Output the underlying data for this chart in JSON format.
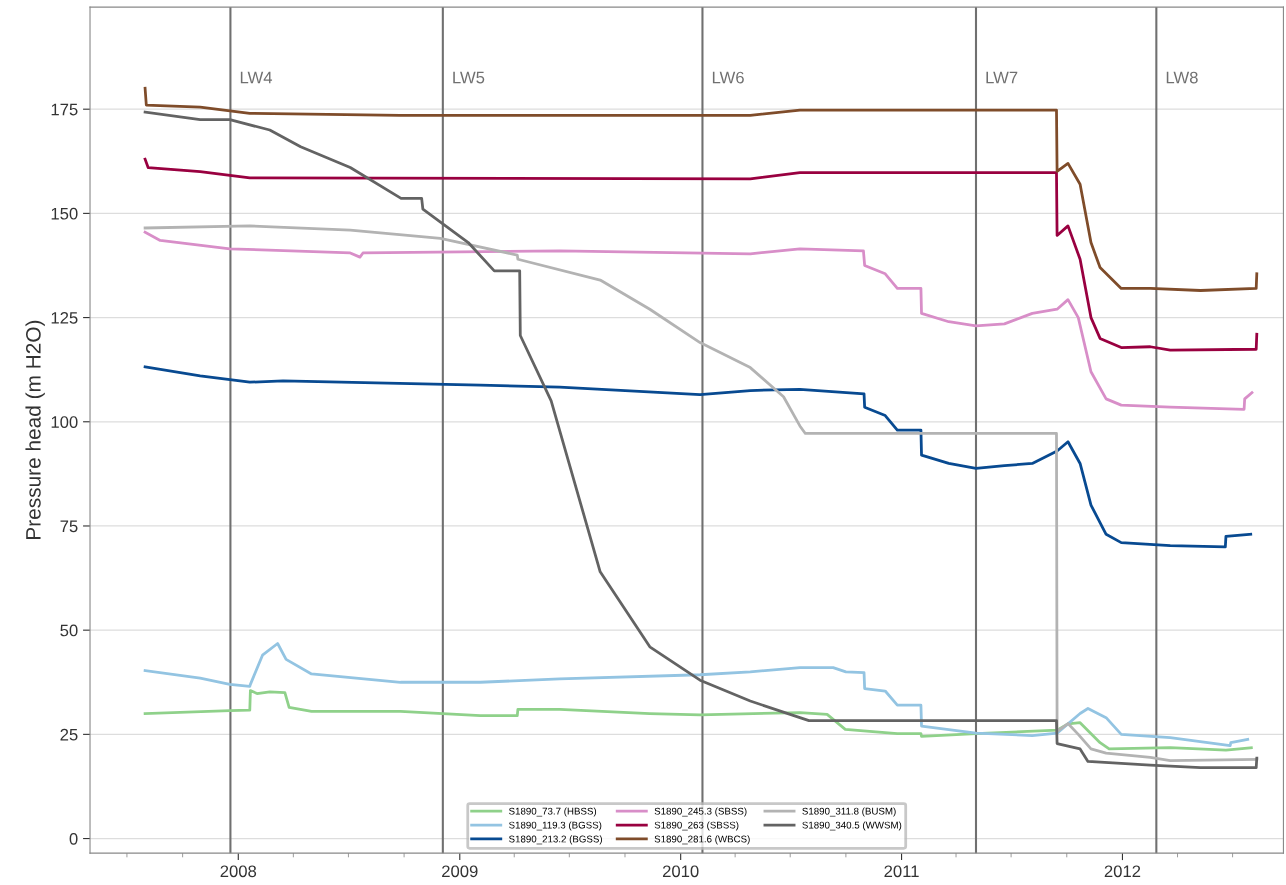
{
  "chart_data": {
    "type": "line",
    "ylabel": "Pressure head (m H2O)",
    "xlim": [
      "2007-05-01",
      "2012-09-23"
    ],
    "ylim": [
      -3.5,
      199.5
    ],
    "xticks": [
      {
        "value": "2008-01-01",
        "label": "2008"
      },
      {
        "value": "2009-01-01",
        "label": "2009"
      },
      {
        "value": "2010-01-01",
        "label": "2010"
      },
      {
        "value": "2011-01-01",
        "label": "2011"
      },
      {
        "value": "2012-01-01",
        "label": "2012"
      }
    ],
    "yticks": [
      0,
      25,
      50,
      75,
      100,
      125,
      150,
      175
    ],
    "grid": "y",
    "legend": "bottom",
    "marker": "none",
    "line_style": "solid",
    "ref_lines": [
      {
        "axis": "x",
        "value": "2007-12-19",
        "label": "LW4",
        "color": "#707070"
      },
      {
        "axis": "x",
        "value": "2008-12-04",
        "label": "LW5",
        "color": "#707070"
      },
      {
        "axis": "x",
        "value": "2010-02-06",
        "label": "LW6",
        "color": "#707070"
      },
      {
        "axis": "x",
        "value": "2011-05-04",
        "label": "LW7",
        "color": "#707070"
      },
      {
        "axis": "x",
        "value": "2012-02-26",
        "label": "LW8",
        "color": "#707070"
      }
    ],
    "series": [
      {
        "name": "S1890_73.7 (HBSS)",
        "color": "#8fd18a",
        "x": [
          "2007-07-31",
          "2007-12-18",
          "2008-01-20",
          "2008-01-21",
          "2008-02-01",
          "2008-02-22",
          "2008-03-18",
          "2008-03-25",
          "2008-05-01",
          "2008-09-25",
          "2009-02-04",
          "2009-04-06",
          "2009-04-07",
          "2009-06-15",
          "2009-11-11",
          "2010-02-02",
          "2010-07-17",
          "2010-08-31",
          "2010-09-30",
          "2010-12-25",
          "2011-02-02",
          "2011-02-03",
          "2011-05-04",
          "2011-09-15",
          "2011-10-03",
          "2011-10-23",
          "2011-11-25",
          "2011-12-10",
          "2012-03-20",
          "2012-06-20",
          "2012-08-01"
        ],
        "values": [
          30,
          30.7,
          30.8,
          35.5,
          34.8,
          35.2,
          35,
          31.5,
          30.5,
          30.5,
          29.5,
          29.5,
          31,
          31,
          30,
          29.7,
          30.2,
          29.8,
          26.2,
          25.2,
          25.2,
          24.5,
          25.2,
          26,
          27.5,
          27.8,
          23,
          21.5,
          21.8,
          21.2,
          21.8
        ]
      },
      {
        "name": "S1890_119.3 (BGSS)",
        "color": "#93c4e2",
        "x": [
          "2007-07-31",
          "2007-10-30",
          "2007-12-18",
          "2008-01-20",
          "2008-01-21",
          "2008-02-10",
          "2008-03-06",
          "2008-03-20",
          "2008-05-01",
          "2008-09-25",
          "2009-02-04",
          "2009-06-15",
          "2010-02-02",
          "2010-04-26",
          "2010-07-17",
          "2010-09-10",
          "2010-10-01",
          "2010-10-31",
          "2010-11-01",
          "2010-12-05",
          "2010-12-25",
          "2011-02-02",
          "2011-02-03",
          "2011-05-04",
          "2011-08-05",
          "2011-09-15",
          "2011-10-23",
          "2011-11-05",
          "2011-12-05",
          "2011-12-30",
          "2012-03-20",
          "2012-06-27",
          "2012-06-28",
          "2012-07-26"
        ],
        "values": [
          40.3,
          38.5,
          37,
          36.5,
          37,
          44,
          46.8,
          43,
          39.5,
          37.5,
          37.5,
          38.3,
          39.3,
          40,
          41,
          41,
          40,
          39.8,
          36,
          35.4,
          32,
          32,
          27,
          25.3,
          24.7,
          25.3,
          30,
          31.2,
          29,
          25,
          24.2,
          22.3,
          23,
          23.8
        ]
      },
      {
        "name": "S1890_213.2 (BGSS)",
        "color": "#084a91",
        "x": [
          "2007-07-31",
          "2007-10-30",
          "2008-01-20",
          "2008-03-15",
          "2009-02-04",
          "2009-06-15",
          "2010-02-02",
          "2010-04-26",
          "2010-07-17",
          "2010-10-31",
          "2010-11-01",
          "2010-12-05",
          "2010-12-25",
          "2011-02-02",
          "2011-02-03",
          "2011-03-20",
          "2011-05-04",
          "2011-06-20",
          "2011-08-05",
          "2011-09-15",
          "2011-10-03",
          "2011-10-23",
          "2011-11-10",
          "2011-12-05",
          "2011-12-30",
          "2012-03-20",
          "2012-06-19",
          "2012-06-20",
          "2012-07-31"
        ],
        "values": [
          113.2,
          111,
          109.5,
          109.8,
          108.8,
          108.3,
          106.5,
          107.5,
          107.8,
          106.7,
          103.5,
          101.5,
          98,
          98,
          92,
          90,
          88.8,
          89.5,
          90,
          93,
          95.2,
          90,
          80,
          73,
          71,
          70.3,
          70,
          72.5,
          73
        ]
      },
      {
        "name": "S1890_245.3 (SBSS)",
        "color": "#d88ec8",
        "x": [
          "2007-07-31",
          "2007-08-25",
          "2007-12-18",
          "2008-07-04",
          "2008-07-20",
          "2008-07-25",
          "2009-06-15",
          "2010-04-26",
          "2010-07-17",
          "2010-10-30",
          "2010-11-01",
          "2010-12-05",
          "2010-12-25",
          "2011-02-02",
          "2011-02-03",
          "2011-03-20",
          "2011-05-04",
          "2011-06-20",
          "2011-08-05",
          "2011-09-15",
          "2011-10-03",
          "2011-10-20",
          "2011-11-10",
          "2011-12-05",
          "2011-12-30",
          "2012-03-20",
          "2012-07-20",
          "2012-07-21",
          "2012-08-02"
        ],
        "values": [
          145.5,
          143.5,
          141.5,
          140.5,
          139.5,
          140.5,
          141,
          140.3,
          141.5,
          141,
          137.5,
          135.5,
          132,
          132,
          126,
          124,
          123,
          123.5,
          126,
          127,
          129.3,
          125,
          112,
          105.5,
          104,
          103.5,
          103,
          105.5,
          107
        ]
      },
      {
        "name": "S1890_263 (SBSS)",
        "color": "#990040",
        "x": [
          "2007-07-31",
          "2007-08-05",
          "2007-10-30",
          "2008-01-20",
          "2010-04-26",
          "2010-07-17",
          "2011-09-14",
          "2011-09-15",
          "2011-10-03",
          "2011-10-23",
          "2011-11-10",
          "2011-11-25",
          "2011-12-30",
          "2012-02-16",
          "2012-03-20",
          "2012-08-09",
          "2012-08-10"
        ],
        "values": [
          163,
          161,
          160,
          158.5,
          158.3,
          159.8,
          159.8,
          144.7,
          147,
          139,
          125,
          120,
          117.8,
          118,
          117.2,
          117.4,
          121
        ]
      },
      {
        "name": "S1890_281.6 (WBCS)",
        "color": "#7f4c2a",
        "x": [
          "2007-07-31",
          "2007-08-02",
          "2007-10-30",
          "2008-01-20",
          "2008-09-25",
          "2010-04-26",
          "2010-07-17",
          "2011-09-14",
          "2011-09-15",
          "2011-10-03",
          "2011-10-23",
          "2011-11-10",
          "2011-11-25",
          "2011-12-30",
          "2012-02-16",
          "2012-05-09",
          "2012-08-09",
          "2012-08-10"
        ],
        "values": [
          180,
          176,
          175.5,
          174,
          173.5,
          173.5,
          174.8,
          174.8,
          160.1,
          162,
          157,
          143,
          137,
          132,
          132,
          131.5,
          132,
          135.5
        ]
      },
      {
        "name": "S1890_311.8 (BUSM)",
        "color": "#b3b3b3",
        "x": [
          "2007-07-31",
          "2008-01-20",
          "2008-07-04",
          "2008-11-30",
          "2009-04-06",
          "2009-04-07",
          "2009-08-21",
          "2009-11-11",
          "2010-02-02",
          "2010-04-26",
          "2010-06-20",
          "2010-07-17",
          "2010-07-26",
          "2011-09-14",
          "2011-09-15",
          "2011-10-03",
          "2011-10-20",
          "2011-11-10",
          "2011-12-05",
          "2012-02-16",
          "2012-03-20",
          "2012-08-10"
        ],
        "values": [
          146.5,
          147,
          146,
          144,
          140,
          139,
          134,
          127,
          119,
          113,
          106,
          99,
          97.2,
          97.2,
          25.7,
          27.6,
          25,
          21.5,
          20.5,
          19.5,
          18.7,
          19
        ]
      },
      {
        "name": "S1890_340.5 (WWSM)",
        "color": "#636363",
        "x": [
          "2007-07-31",
          "2007-10-30",
          "2007-12-18",
          "2008-02-22",
          "2008-04-13",
          "2008-07-04",
          "2008-09-26",
          "2008-10-30",
          "2008-11-01",
          "2008-12-04",
          "2009-01-15",
          "2009-02-27",
          "2009-04-10",
          "2009-04-11",
          "2009-06-01",
          "2009-08-21",
          "2009-11-11",
          "2010-02-02",
          "2010-04-26",
          "2010-07-17",
          "2010-08-01",
          "2011-09-14",
          "2011-09-15",
          "2011-10-23",
          "2011-11-05",
          "2012-02-16",
          "2012-05-09",
          "2012-08-09",
          "2012-08-10"
        ],
        "values": [
          174.3,
          172.5,
          172.5,
          170,
          166,
          161,
          153.6,
          153.6,
          151,
          147.5,
          143,
          136.2,
          136.2,
          120.7,
          105,
          64,
          46,
          38,
          33,
          29,
          28.3,
          28.3,
          22.8,
          21.5,
          18.5,
          17.6,
          17,
          17,
          19.3
        ]
      }
    ]
  }
}
